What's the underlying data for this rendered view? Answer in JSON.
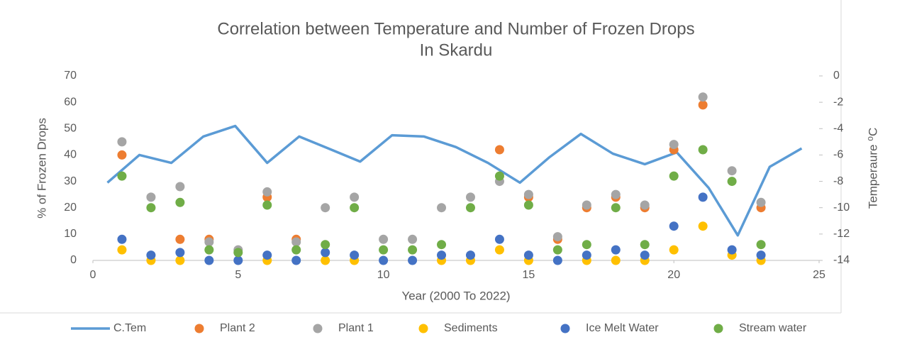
{
  "chart_data": {
    "type": "scatter",
    "title": [
      "Correlation between Temperature and Number of Frozen Drops",
      "In Skardu"
    ],
    "x_label": "Year (2000 To 2022)",
    "y_label": "% of Frozen Drops",
    "y2_label": "Temperaure ⁰C",
    "xlim": [
      0,
      25
    ],
    "xticks": [
      0,
      5,
      10,
      15,
      20,
      25
    ],
    "ylim": [
      0,
      70
    ],
    "yticks": [
      0,
      10,
      20,
      30,
      40,
      50,
      60,
      70
    ],
    "y2lim": [
      -14,
      0
    ],
    "y2ticks": [
      -14,
      -12,
      -10,
      -8,
      -6,
      -4,
      -2,
      0
    ],
    "legend": "bottom",
    "x": [
      1,
      2,
      3,
      4,
      5,
      6,
      7,
      8,
      9,
      10,
      11,
      12,
      13,
      14,
      15,
      16,
      17,
      18,
      19,
      20,
      21,
      22,
      23
    ],
    "series": [
      {
        "name": "C.Tem",
        "color": "#5b9bd5",
        "style": "line",
        "axis": "y2",
        "x": [
          0.5,
          1.6,
          2.7,
          3.8,
          4.9,
          6.0,
          7.1,
          8.1,
          9.2,
          10.3,
          11.4,
          12.5,
          13.6,
          14.7,
          15.7,
          16.8,
          17.9,
          19.0,
          20.1,
          21.2,
          22.2,
          23.3,
          24.4
        ],
        "values": [
          -8.1,
          -6.0,
          -6.6,
          -4.6,
          -3.8,
          -6.6,
          -4.6,
          -5.5,
          -6.5,
          -4.5,
          -4.6,
          -5.4,
          -6.6,
          -8.1,
          -6.2,
          -4.4,
          -5.9,
          -6.7,
          -5.8,
          -8.5,
          -12.1,
          -6.9,
          -5.5
        ]
      },
      {
        "name": "Plant 2",
        "color": "#ed7d31",
        "values": [
          40,
          null,
          8,
          8,
          null,
          24,
          8,
          null,
          null,
          null,
          null,
          null,
          null,
          42,
          24,
          8,
          20,
          24,
          20,
          42,
          59,
          null,
          20
        ]
      },
      {
        "name": "Plant 1",
        "color": "#a5a5a5",
        "values": [
          45,
          24,
          28,
          7,
          4,
          26,
          7,
          20,
          24,
          8,
          8,
          20,
          24,
          30,
          25,
          9,
          21,
          25,
          21,
          44,
          62,
          34,
          22
        ]
      },
      {
        "name": "Sediments",
        "color": "#ffc000",
        "values": [
          4,
          0,
          0,
          null,
          null,
          0,
          null,
          0,
          0,
          null,
          null,
          0,
          0,
          4,
          0,
          null,
          0,
          0,
          0,
          4,
          13,
          2,
          0
        ]
      },
      {
        "name": "Ice Melt Water",
        "color": "#4472c4",
        "values": [
          8,
          2,
          3,
          0,
          0,
          2,
          0,
          3,
          2,
          0,
          0,
          2,
          2,
          8,
          2,
          0,
          2,
          4,
          2,
          13,
          24,
          4,
          2
        ]
      },
      {
        "name": "Stream water",
        "color": "#70ad47",
        "values": [
          32,
          20,
          22,
          4,
          3,
          21,
          4,
          6,
          20,
          4,
          4,
          6,
          20,
          32,
          21,
          4,
          6,
          20,
          6,
          32,
          42,
          30,
          6
        ]
      }
    ]
  }
}
